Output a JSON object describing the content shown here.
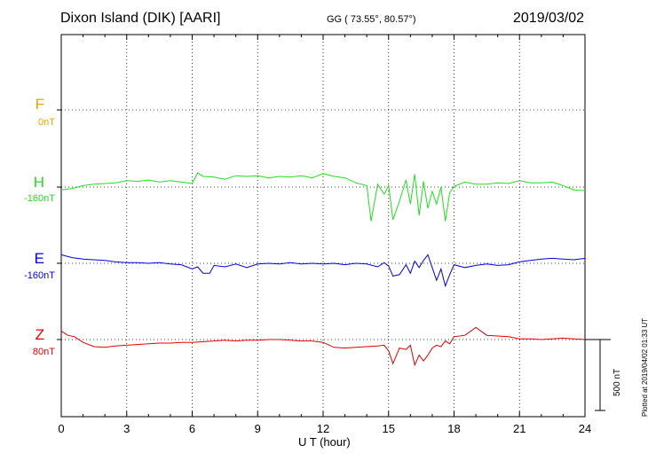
{
  "header": {
    "station": "Dixon Island (DIK)  [AARI]",
    "coords": "GG ( 73.55°,  80.57°)",
    "date": "2019/03/02"
  },
  "side_note": "Plotted at 2019/04/02 01:33 UT",
  "scale_label": "500 nT",
  "colors": {
    "F": "#f0a000",
    "H": "#22dd22",
    "E": "#0000dd",
    "Z": "#dd0000"
  },
  "chart_data": {
    "type": "line",
    "title": "Dixon Island (DIK)  [AARI]",
    "xlabel": "U T (hour)",
    "xlim": [
      0,
      24
    ],
    "xticks": [
      "0",
      "3",
      "6",
      "9",
      "12",
      "15",
      "18",
      "21",
      "24"
    ],
    "scale_nT": 500,
    "grid": true,
    "series": [
      {
        "name": "F",
        "baseline_label": "0nT",
        "baseline_nT": 0,
        "x": [],
        "y": []
      },
      {
        "name": "H",
        "baseline_label": "-160nT",
        "baseline_nT": -160,
        "x": [
          0,
          0.5,
          1,
          1.5,
          2,
          2.5,
          3,
          3.5,
          4,
          4.5,
          5,
          5.5,
          6,
          6.25,
          6.5,
          7,
          7.5,
          8,
          8.5,
          9,
          9.5,
          10,
          10.5,
          11,
          11.5,
          12,
          12.5,
          13,
          13.5,
          14,
          14.2,
          14.5,
          14.8,
          15,
          15.2,
          15.5,
          15.8,
          16,
          16.2,
          16.4,
          16.6,
          16.8,
          17,
          17.2,
          17.4,
          17.6,
          17.8,
          18,
          18.5,
          19,
          19.5,
          20,
          20.5,
          21,
          21.5,
          22,
          22.5,
          23,
          23.5,
          24
        ],
        "y": [
          -20,
          -10,
          10,
          20,
          25,
          30,
          45,
          40,
          50,
          35,
          45,
          35,
          25,
          100,
          75,
          70,
          55,
          80,
          75,
          80,
          65,
          75,
          70,
          80,
          65,
          95,
          75,
          65,
          30,
          10,
          -240,
          20,
          -50,
          10,
          -230,
          -100,
          50,
          -120,
          90,
          -200,
          40,
          -150,
          -30,
          -120,
          0,
          -240,
          -40,
          5,
          35,
          20,
          20,
          30,
          25,
          45,
          30,
          30,
          35,
          10,
          -20,
          -25
        ]
      },
      {
        "name": "E",
        "baseline_label": "-160nT",
        "baseline_nT": -160,
        "x": [
          0,
          0.5,
          1,
          1.5,
          2,
          2.5,
          3,
          3.5,
          4,
          4.5,
          5,
          5.5,
          6,
          6.25,
          6.5,
          6.8,
          7,
          7.5,
          8,
          8.5,
          9,
          9.5,
          10,
          10.5,
          11,
          11.5,
          12,
          12.5,
          13,
          13.5,
          14,
          14.5,
          14.8,
          15,
          15.2,
          15.5,
          15.8,
          16,
          16.2,
          16.4,
          16.6,
          16.8,
          17,
          17.2,
          17.4,
          17.6,
          17.8,
          18,
          18.5,
          19,
          19.5,
          20,
          20.5,
          21,
          21.5,
          22,
          22.5,
          23,
          23.5,
          24
        ],
        "y": [
          60,
          40,
          30,
          25,
          20,
          10,
          5,
          5,
          0,
          5,
          -5,
          -10,
          -40,
          -25,
          -70,
          -70,
          -15,
          -25,
          -5,
          -30,
          -5,
          0,
          -5,
          5,
          -5,
          0,
          -5,
          0,
          -10,
          0,
          -5,
          -25,
          5,
          -20,
          -90,
          -80,
          -10,
          -70,
          15,
          -30,
          20,
          60,
          -30,
          -120,
          -40,
          -160,
          -80,
          -10,
          -30,
          -15,
          -5,
          -15,
          -10,
          10,
          20,
          30,
          35,
          30,
          25,
          35
        ]
      },
      {
        "name": "Z",
        "baseline_label": "80nT",
        "baseline_nT": 80,
        "x": [
          0,
          0.3,
          0.6,
          1,
          1.5,
          2,
          2.5,
          3,
          3.5,
          4,
          4.5,
          5,
          5.5,
          6,
          6.5,
          7,
          7.5,
          8,
          8.5,
          9,
          9.5,
          10,
          10.5,
          11,
          11.5,
          12,
          12.5,
          13,
          13.5,
          14,
          14.5,
          14.8,
          15,
          15.2,
          15.5,
          15.8,
          16,
          16.2,
          16.4,
          16.6,
          16.8,
          17,
          17.2,
          17.4,
          17.6,
          17.8,
          18,
          18.5,
          19,
          19.5,
          20,
          20.5,
          21,
          21.5,
          22,
          22.5,
          23,
          23.5,
          24
        ],
        "y": [
          60,
          30,
          20,
          -20,
          -50,
          -55,
          -45,
          -40,
          -35,
          -30,
          -25,
          -25,
          -20,
          -20,
          -15,
          -10,
          -5,
          -10,
          -5,
          -5,
          0,
          0,
          -5,
          -10,
          -10,
          -20,
          -55,
          -60,
          -55,
          -50,
          -45,
          -40,
          -80,
          -170,
          -60,
          -70,
          -40,
          -180,
          -110,
          -150,
          -110,
          -60,
          -40,
          -50,
          -10,
          -30,
          20,
          30,
          85,
          30,
          25,
          20,
          5,
          5,
          0,
          5,
          10,
          5,
          0
        ]
      }
    ]
  }
}
